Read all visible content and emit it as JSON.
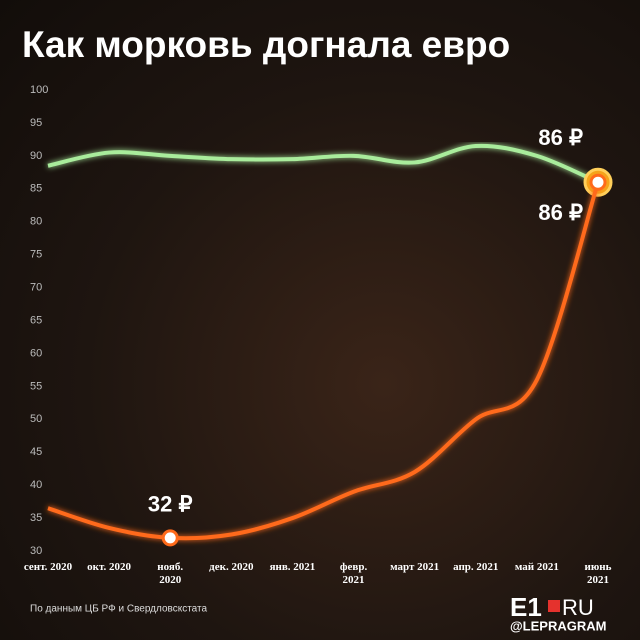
{
  "chart_data": {
    "type": "line",
    "title": "Как морковь догнала евро",
    "categories": [
      "сент. 2020",
      "окт. 2020",
      "нояб. 2020",
      "дек. 2020",
      "янв. 2021",
      "февр. 2021",
      "март 2021",
      "апр. 2021",
      "май 2021",
      "июнь 2021"
    ],
    "series": [
      {
        "color": "#a9ec9c",
        "values": [
          88.5,
          90.5,
          90,
          89.5,
          89.5,
          90,
          89,
          91.5,
          90,
          86
        ],
        "value_labels": [
          null,
          null,
          null,
          null,
          null,
          null,
          null,
          null,
          null,
          "86 ₽"
        ]
      },
      {
        "color": "#ff6a1a",
        "values": [
          36.5,
          33.5,
          32,
          32.5,
          35,
          39,
          42,
          50,
          56,
          86
        ],
        "value_labels": [
          null,
          null,
          "32 ₽",
          null,
          null,
          null,
          null,
          null,
          null,
          "86 ₽"
        ]
      }
    ],
    "ylim": [
      30,
      100
    ],
    "yticks": [
      30,
      35,
      40,
      45,
      50,
      55,
      60,
      65,
      70,
      75,
      80,
      85,
      90,
      95,
      100
    ],
    "grid": false,
    "source": "По данным ЦБ РФ и Свердловскстата",
    "logo": "E1",
    "logo_suffix": "RU",
    "watermark": "@LEPRAGRAM"
  }
}
